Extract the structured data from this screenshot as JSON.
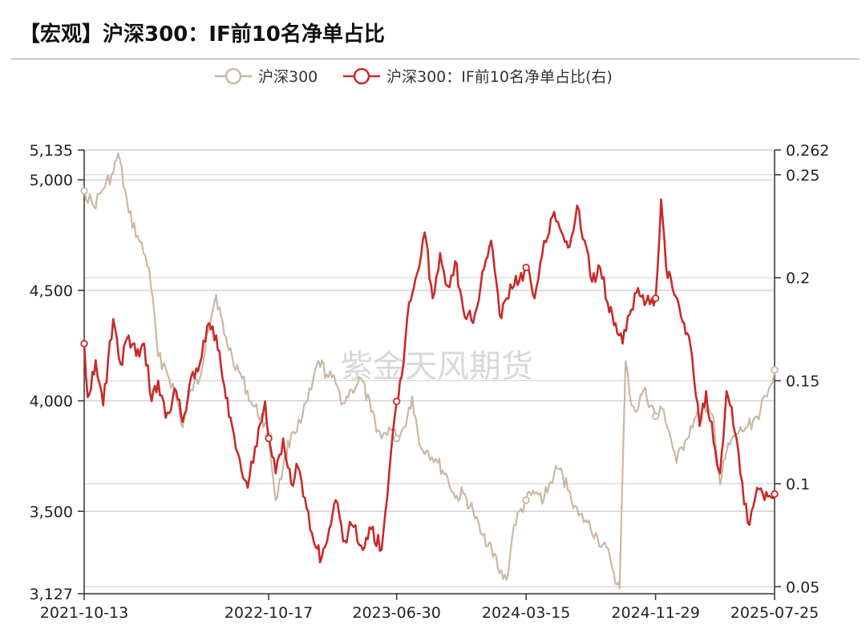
{
  "title": "【宏观】沪深300：IF前10名净单占比",
  "watermark": "紫金天风期货",
  "colors": {
    "hs300": "#c9b8a3",
    "ratio": "#c92a2a",
    "grid": "#c8c8c8",
    "axis": "#333333"
  },
  "chart_data": {
    "type": "line",
    "title": "【宏观】沪深300：IF前10名净单占比",
    "legend_position": "top-center",
    "grid": true,
    "x_ticks": [
      "2021-10-13",
      "2022-10-17",
      "2023-06-30",
      "2024-03-15",
      "2024-11-29",
      "2025-07-25"
    ],
    "x_range": [
      "2021-10-13",
      "2025-07-25"
    ],
    "left_axis": {
      "min": 3127,
      "max": 5135,
      "ticks": [
        3127,
        3500,
        4000,
        4500,
        5000,
        5135
      ],
      "tick_labels": [
        "3,127",
        "3,500",
        "4,000",
        "4,500",
        "5,000",
        "5,135"
      ]
    },
    "right_axis": {
      "min": 0.0466,
      "max": 0.262,
      "ticks": [
        0.05,
        0.1,
        0.15,
        0.2,
        0.25,
        0.262
      ],
      "tick_labels": [
        "0.05",
        "0.1",
        "0.15",
        "0.2",
        "0.25",
        "0.262"
      ]
    },
    "series": [
      {
        "name": "沪深300",
        "axis": "left",
        "color": "#c9b8a3",
        "points": [
          [
            "2021-10-13",
            4950
          ],
          [
            "2021-11-01",
            4880
          ],
          [
            "2021-11-20",
            4960
          ],
          [
            "2021-12-10",
            5030
          ],
          [
            "2021-12-20",
            5120
          ],
          [
            "2022-01-10",
            4850
          ],
          [
            "2022-02-01",
            4720
          ],
          [
            "2022-02-20",
            4600
          ],
          [
            "2022-03-10",
            4200
          ],
          [
            "2022-03-25",
            4150
          ],
          [
            "2022-04-15",
            4020
          ],
          [
            "2022-04-28",
            3880
          ],
          [
            "2022-05-15",
            4050
          ],
          [
            "2022-06-01",
            4100
          ],
          [
            "2022-06-15",
            4300
          ],
          [
            "2022-07-04",
            4480
          ],
          [
            "2022-07-20",
            4300
          ],
          [
            "2022-08-05",
            4200
          ],
          [
            "2022-08-25",
            4100
          ],
          [
            "2022-09-15",
            3980
          ],
          [
            "2022-10-10",
            3900
          ],
          [
            "2022-10-17",
            3840
          ],
          [
            "2022-10-31",
            3550
          ],
          [
            "2022-11-15",
            3700
          ],
          [
            "2022-12-01",
            3850
          ],
          [
            "2022-12-20",
            3900
          ],
          [
            "2023-01-10",
            4050
          ],
          [
            "2023-01-25",
            4180
          ],
          [
            "2023-02-10",
            4120
          ],
          [
            "2023-02-28",
            4080
          ],
          [
            "2023-03-15",
            3990
          ],
          [
            "2023-04-01",
            4050
          ],
          [
            "2023-04-20",
            4100
          ],
          [
            "2023-05-10",
            3950
          ],
          [
            "2023-05-31",
            3830
          ],
          [
            "2023-06-15",
            3880
          ],
          [
            "2023-06-30",
            3830
          ],
          [
            "2023-07-15",
            3880
          ],
          [
            "2023-07-31",
            4020
          ],
          [
            "2023-08-15",
            3800
          ],
          [
            "2023-09-01",
            3770
          ],
          [
            "2023-09-20",
            3720
          ],
          [
            "2023-10-10",
            3650
          ],
          [
            "2023-10-25",
            3560
          ],
          [
            "2023-11-10",
            3580
          ],
          [
            "2023-11-30",
            3500
          ],
          [
            "2023-12-15",
            3400
          ],
          [
            "2024-01-05",
            3350
          ],
          [
            "2024-01-22",
            3220
          ],
          [
            "2024-02-05",
            3190
          ],
          [
            "2024-02-20",
            3440
          ],
          [
            "2024-03-15",
            3550
          ],
          [
            "2024-04-01",
            3580
          ],
          [
            "2024-04-20",
            3560
          ],
          [
            "2024-05-10",
            3670
          ],
          [
            "2024-05-20",
            3690
          ],
          [
            "2024-06-10",
            3590
          ],
          [
            "2024-06-28",
            3480
          ],
          [
            "2024-07-15",
            3450
          ],
          [
            "2024-08-05",
            3380
          ],
          [
            "2024-08-30",
            3290
          ],
          [
            "2024-09-13",
            3170
          ],
          [
            "2024-09-18",
            3150
          ],
          [
            "2024-09-30",
            4180
          ],
          [
            "2024-10-08",
            4030
          ],
          [
            "2024-10-20",
            3950
          ],
          [
            "2024-11-05",
            4050
          ],
          [
            "2024-11-29",
            3930
          ],
          [
            "2024-12-15",
            3960
          ],
          [
            "2025-01-10",
            3720
          ],
          [
            "2025-01-27",
            3820
          ],
          [
            "2025-02-15",
            3920
          ],
          [
            "2025-03-10",
            3950
          ],
          [
            "2025-03-25",
            3920
          ],
          [
            "2025-04-07",
            3620
          ],
          [
            "2025-04-20",
            3770
          ],
          [
            "2025-05-10",
            3850
          ],
          [
            "2025-06-01",
            3880
          ],
          [
            "2025-06-20",
            3930
          ],
          [
            "2025-07-10",
            4020
          ],
          [
            "2025-07-25",
            4140
          ]
        ]
      },
      {
        "name": "沪深300：IF前10名净单占比(右)",
        "axis": "right",
        "color": "#c92a2a",
        "points": [
          [
            "2021-10-13",
            0.168
          ],
          [
            "2021-10-20",
            0.142
          ],
          [
            "2021-11-05",
            0.16
          ],
          [
            "2021-11-20",
            0.138
          ],
          [
            "2021-12-10",
            0.18
          ],
          [
            "2021-12-25",
            0.158
          ],
          [
            "2022-01-10",
            0.172
          ],
          [
            "2022-01-25",
            0.162
          ],
          [
            "2022-02-10",
            0.168
          ],
          [
            "2022-02-25",
            0.14
          ],
          [
            "2022-03-10",
            0.15
          ],
          [
            "2022-03-25",
            0.132
          ],
          [
            "2022-04-15",
            0.145
          ],
          [
            "2022-04-28",
            0.13
          ],
          [
            "2022-05-15",
            0.152
          ],
          [
            "2022-06-01",
            0.158
          ],
          [
            "2022-06-20",
            0.178
          ],
          [
            "2022-07-04",
            0.172
          ],
          [
            "2022-07-20",
            0.148
          ],
          [
            "2022-08-05",
            0.128
          ],
          [
            "2022-08-20",
            0.112
          ],
          [
            "2022-09-05",
            0.098
          ],
          [
            "2022-09-20",
            0.118
          ],
          [
            "2022-10-10",
            0.14
          ],
          [
            "2022-10-17",
            0.122
          ],
          [
            "2022-10-31",
            0.105
          ],
          [
            "2022-11-15",
            0.122
          ],
          [
            "2022-12-01",
            0.1
          ],
          [
            "2022-12-15",
            0.108
          ],
          [
            "2023-01-01",
            0.088
          ],
          [
            "2023-01-15",
            0.072
          ],
          [
            "2023-01-31",
            0.064
          ],
          [
            "2023-02-15",
            0.078
          ],
          [
            "2023-02-28",
            0.092
          ],
          [
            "2023-03-15",
            0.072
          ],
          [
            "2023-04-01",
            0.08
          ],
          [
            "2023-04-20",
            0.07
          ],
          [
            "2023-05-10",
            0.078
          ],
          [
            "2023-05-31",
            0.068
          ],
          [
            "2023-06-15",
            0.105
          ],
          [
            "2023-06-30",
            0.14
          ],
          [
            "2023-07-10",
            0.152
          ],
          [
            "2023-07-25",
            0.188
          ],
          [
            "2023-08-10",
            0.202
          ],
          [
            "2023-08-25",
            0.222
          ],
          [
            "2023-09-10",
            0.19
          ],
          [
            "2023-09-25",
            0.212
          ],
          [
            "2023-10-10",
            0.196
          ],
          [
            "2023-10-25",
            0.208
          ],
          [
            "2023-11-10",
            0.185
          ],
          [
            "2023-11-30",
            0.178
          ],
          [
            "2023-12-15",
            0.196
          ],
          [
            "2024-01-05",
            0.218
          ],
          [
            "2024-01-22",
            0.182
          ],
          [
            "2024-02-05",
            0.19
          ],
          [
            "2024-02-20",
            0.196
          ],
          [
            "2024-03-15",
            0.205
          ],
          [
            "2024-04-01",
            0.19
          ],
          [
            "2024-04-20",
            0.218
          ],
          [
            "2024-05-10",
            0.232
          ],
          [
            "2024-05-25",
            0.222
          ],
          [
            "2024-06-10",
            0.215
          ],
          [
            "2024-06-25",
            0.235
          ],
          [
            "2024-07-10",
            0.218
          ],
          [
            "2024-07-25",
            0.198
          ],
          [
            "2024-08-10",
            0.205
          ],
          [
            "2024-08-25",
            0.188
          ],
          [
            "2024-09-10",
            0.178
          ],
          [
            "2024-09-24",
            0.168
          ],
          [
            "2024-10-08",
            0.182
          ],
          [
            "2024-10-25",
            0.195
          ],
          [
            "2024-11-10",
            0.188
          ],
          [
            "2024-11-29",
            0.19
          ],
          [
            "2024-12-10",
            0.238
          ],
          [
            "2024-12-20",
            0.205
          ],
          [
            "2025-01-05",
            0.192
          ],
          [
            "2025-01-25",
            0.178
          ],
          [
            "2025-02-10",
            0.162
          ],
          [
            "2025-02-25",
            0.128
          ],
          [
            "2025-03-10",
            0.145
          ],
          [
            "2025-03-25",
            0.12
          ],
          [
            "2025-04-07",
            0.105
          ],
          [
            "2025-04-20",
            0.145
          ],
          [
            "2025-05-10",
            0.122
          ],
          [
            "2025-05-25",
            0.09
          ],
          [
            "2025-06-05",
            0.08
          ],
          [
            "2025-06-20",
            0.098
          ],
          [
            "2025-07-05",
            0.092
          ],
          [
            "2025-07-25",
            0.095
          ]
        ]
      }
    ]
  }
}
